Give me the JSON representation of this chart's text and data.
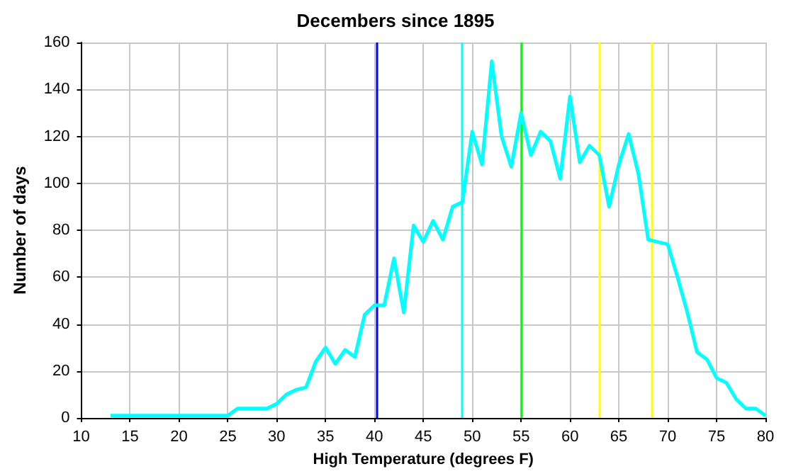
{
  "chart_data": {
    "type": "line",
    "title": "Decembers since 1895",
    "xlabel": "High Temperature (degrees F)",
    "ylabel": "Number of days",
    "x": [
      13,
      14,
      15,
      16,
      17,
      18,
      19,
      20,
      21,
      22,
      23,
      24,
      25,
      26,
      27,
      28,
      29,
      30,
      31,
      32,
      33,
      34,
      35,
      36,
      37,
      38,
      39,
      40,
      41,
      42,
      43,
      44,
      45,
      46,
      47,
      48,
      49,
      50,
      51,
      52,
      53,
      54,
      55,
      56,
      57,
      58,
      59,
      60,
      61,
      62,
      63,
      64,
      65,
      66,
      67,
      68,
      69,
      70,
      71,
      72,
      73,
      74,
      75,
      76,
      77,
      78,
      79,
      80
    ],
    "series": [
      {
        "color": "#00ffff",
        "values": [
          1,
          1,
          1,
          1,
          1,
          1,
          1,
          1,
          1,
          1,
          1,
          1,
          1,
          4,
          4,
          4,
          4,
          6,
          10,
          12,
          13,
          24,
          30,
          23,
          29,
          26,
          44,
          48,
          48,
          68,
          45,
          82,
          75,
          84,
          76,
          90,
          92,
          122,
          108,
          152,
          120,
          107,
          130,
          112,
          122,
          118,
          102,
          137,
          109,
          116,
          112,
          90,
          108,
          121,
          104,
          76,
          75,
          74,
          60,
          45,
          28,
          25,
          17,
          15,
          8,
          4,
          4,
          1
        ]
      }
    ],
    "xlim": [
      10,
      80
    ],
    "xticks": [
      10,
      15,
      20,
      25,
      30,
      35,
      40,
      45,
      50,
      55,
      60,
      65,
      70,
      75,
      80
    ],
    "ylim": [
      0,
      160
    ],
    "yticks": [
      0,
      20,
      40,
      60,
      80,
      100,
      120,
      140,
      160
    ],
    "ref_lines": [
      {
        "axis": "x",
        "value": 40.3,
        "color": "#0000ff"
      },
      {
        "axis": "x",
        "value": 49,
        "color": "#00ffff"
      },
      {
        "axis": "x",
        "value": 55,
        "color": "#00ff00"
      },
      {
        "axis": "x",
        "value": 63,
        "color": "#ffff00"
      },
      {
        "axis": "x",
        "value": 68.4,
        "color": "#ffff00"
      }
    ],
    "grid": true,
    "marker": "none",
    "line_style": "solid"
  }
}
